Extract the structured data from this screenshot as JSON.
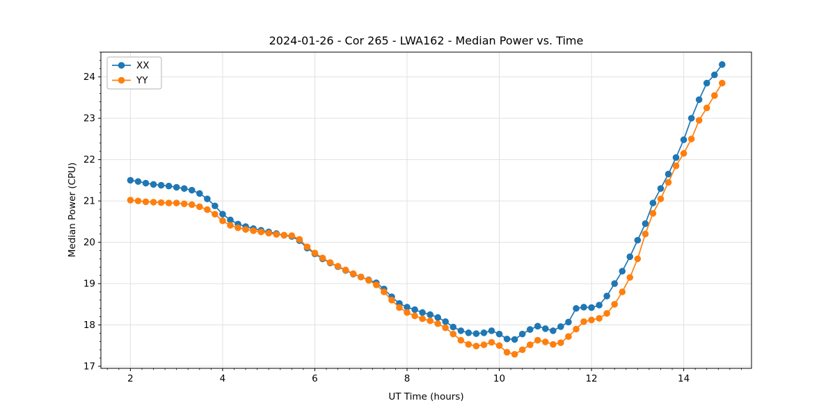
{
  "colors": {
    "series_xx": "#1f77b4",
    "series_yy": "#ff7f0e",
    "grid": "#e0e0e0",
    "spine": "#000000",
    "text": "#000000",
    "legend_border": "#b3b3b3",
    "background": "#ffffff"
  },
  "chart_data": {
    "type": "line",
    "title": "2024-01-26 - Cor 265 - LWA162 - Median Power vs. Time",
    "xlabel": "UT Time (hours)",
    "ylabel": "Median Power (CPU)",
    "xlim": [
      1.36,
      15.47
    ],
    "ylim": [
      16.95,
      24.6
    ],
    "xticks": [
      2,
      4,
      6,
      8,
      10,
      12,
      14
    ],
    "yticks": [
      17,
      18,
      19,
      20,
      21,
      22,
      23,
      24
    ],
    "x_minor_step": 0.25,
    "y_minor_step": 0.2,
    "grid": true,
    "marker": "circle",
    "marker_radius": 4.8,
    "line_width": 1.7,
    "legend_position": "upper left",
    "x": [
      2.0,
      2.167,
      2.333,
      2.5,
      2.667,
      2.833,
      3.0,
      3.167,
      3.333,
      3.5,
      3.667,
      3.833,
      4.0,
      4.167,
      4.333,
      4.5,
      4.667,
      4.833,
      5.0,
      5.167,
      5.333,
      5.5,
      5.667,
      5.833,
      6.0,
      6.167,
      6.333,
      6.5,
      6.667,
      6.833,
      7.0,
      7.167,
      7.333,
      7.5,
      7.667,
      7.833,
      8.0,
      8.167,
      8.333,
      8.5,
      8.667,
      8.833,
      9.0,
      9.167,
      9.333,
      9.5,
      9.667,
      9.833,
      10.0,
      10.167,
      10.333,
      10.5,
      10.667,
      10.833,
      11.0,
      11.167,
      11.333,
      11.5,
      11.667,
      11.833,
      12.0,
      12.167,
      12.333,
      12.5,
      12.667,
      12.833,
      13.0,
      13.167,
      13.333,
      13.5,
      13.667,
      13.833,
      14.0,
      14.167,
      14.333,
      14.5,
      14.667,
      14.833
    ],
    "series": [
      {
        "name": "XX",
        "color": "#1f77b4",
        "values": [
          21.5,
          21.47,
          21.43,
          21.4,
          21.38,
          21.36,
          21.33,
          21.3,
          21.26,
          21.18,
          21.05,
          20.88,
          20.68,
          20.54,
          20.44,
          20.38,
          20.33,
          20.29,
          20.25,
          20.21,
          20.17,
          20.14,
          20.04,
          19.86,
          19.72,
          19.6,
          19.5,
          19.41,
          19.32,
          19.23,
          19.16,
          19.09,
          19.02,
          18.87,
          18.68,
          18.52,
          18.43,
          18.37,
          18.3,
          18.25,
          18.18,
          18.08,
          17.95,
          17.86,
          17.81,
          17.79,
          17.81,
          17.86,
          17.78,
          17.66,
          17.65,
          17.78,
          17.89,
          17.97,
          17.91,
          17.86,
          17.96,
          18.07,
          18.4,
          18.43,
          18.42,
          18.48,
          18.7,
          19.0,
          19.3,
          19.65,
          20.05,
          20.45,
          20.95,
          21.3,
          21.65,
          22.05,
          22.48,
          23.0,
          23.45,
          23.85,
          24.05,
          24.3
        ]
      },
      {
        "name": "YY",
        "color": "#ff7f0e",
        "values": [
          21.02,
          21.0,
          20.98,
          20.97,
          20.96,
          20.95,
          20.95,
          20.93,
          20.91,
          20.86,
          20.79,
          20.68,
          20.52,
          20.41,
          20.35,
          20.31,
          20.28,
          20.25,
          20.22,
          20.19,
          20.17,
          20.16,
          20.07,
          19.89,
          19.74,
          19.62,
          19.51,
          19.42,
          19.33,
          19.24,
          19.16,
          19.08,
          18.97,
          18.8,
          18.6,
          18.42,
          18.3,
          18.22,
          18.15,
          18.1,
          18.03,
          17.93,
          17.78,
          17.63,
          17.53,
          17.49,
          17.52,
          17.58,
          17.5,
          17.34,
          17.29,
          17.4,
          17.52,
          17.63,
          17.59,
          17.53,
          17.57,
          17.72,
          17.9,
          18.08,
          18.12,
          18.16,
          18.28,
          18.5,
          18.8,
          19.15,
          19.6,
          20.2,
          20.7,
          21.05,
          21.45,
          21.85,
          22.15,
          22.5,
          22.95,
          23.25,
          23.55,
          23.85
        ]
      }
    ]
  }
}
